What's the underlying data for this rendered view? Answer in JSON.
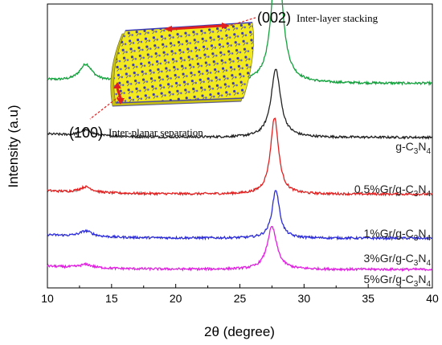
{
  "chart_data": {
    "type": "line",
    "title": "",
    "xlabel": "2θ (degree)",
    "ylabel": "Intensity (a.u)",
    "xlim": [
      10,
      40
    ],
    "x_ticks": [
      "10",
      "15",
      "20",
      "25",
      "30",
      "35",
      "40"
    ],
    "y_ticks_shown": false,
    "legend": "inline labels at right of each curve",
    "series": [
      {
        "name": "g-C3N4",
        "label_parts": [
          "g-C",
          "3",
          "N",
          "4"
        ],
        "color": "#13a03c",
        "offset": 0.72,
        "baseline": 0.0,
        "peaks": [
          {
            "x": 13.0,
            "h": 0.06,
            "w": 0.6
          },
          {
            "x": 17.8,
            "h": 0.025,
            "w": 1.6
          },
          {
            "x": 21.9,
            "h": 0.015,
            "w": 0.4
          },
          {
            "x": 27.9,
            "h": 0.52,
            "w": 0.45
          }
        ]
      },
      {
        "name": "0.5%Gr/g-C3N4",
        "label_parts": [
          "0.5%Gr/g-C",
          "3",
          "N",
          "4"
        ],
        "color": "#222222",
        "offset": 0.53,
        "baseline": 0.0,
        "peaks": [
          {
            "x": 13.0,
            "h": 0.02,
            "w": 0.6
          },
          {
            "x": 27.8,
            "h": 0.24,
            "w": 0.45
          }
        ]
      },
      {
        "name": "1%Gr/g-C3N4",
        "label_parts": [
          "1%Gr/g-C",
          "3",
          "N",
          "4"
        ],
        "color": "#e02020",
        "offset": 0.33,
        "baseline": 0.0,
        "peaks": [
          {
            "x": 13.0,
            "h": 0.02,
            "w": 0.6
          },
          {
            "x": 27.7,
            "h": 0.27,
            "w": 0.38
          }
        ]
      },
      {
        "name": "3%Gr/g-C3N4",
        "label_parts": [
          "3%Gr/g-C",
          "3",
          "N",
          "4"
        ],
        "color": "#2c2cd8",
        "offset": 0.175,
        "baseline": 0.0,
        "peaks": [
          {
            "x": 13.0,
            "h": 0.02,
            "w": 0.6
          },
          {
            "x": 27.8,
            "h": 0.17,
            "w": 0.35
          }
        ]
      },
      {
        "name": "5%Gr/g-C3N4",
        "label_parts": [
          "5%Gr/g-C",
          "3",
          "N",
          "4"
        ],
        "color": "#e020e0",
        "offset": 0.065,
        "baseline": 0.0,
        "peaks": [
          {
            "x": 13.0,
            "h": 0.012,
            "w": 0.6
          },
          {
            "x": 27.5,
            "h": 0.15,
            "w": 0.45
          }
        ]
      }
    ],
    "annotations": [
      {
        "code": "(002)",
        "text": "Inter-layer stacking"
      },
      {
        "code": "(100)",
        "text": "Inter-planar separation"
      }
    ],
    "inset": "g-C3N4 layered sheet structure illustration",
    "colors": {
      "arrow": "#e02020",
      "sheet": "#f2ea1e",
      "atoms": "#3a3ab8"
    }
  }
}
